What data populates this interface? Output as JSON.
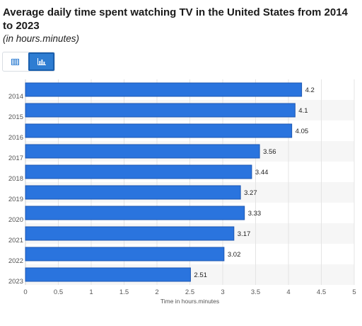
{
  "header": {
    "title": "Average daily time spent watching TV in the United States from 2014 to 2023",
    "subtitle": "(in hours.minutes)"
  },
  "view_toggle": {
    "table_icon": "table-icon",
    "chart_icon": "bar-chart-icon",
    "active": "chart",
    "active_color": "#2e7dd2"
  },
  "chart_data": {
    "type": "bar",
    "orientation": "horizontal",
    "title": "Average daily time spent watching TV in the United States from 2014 to 2023",
    "subtitle": "(in hours.minutes)",
    "categories": [
      "2014",
      "2015",
      "2016",
      "2017",
      "2018",
      "2019",
      "2020",
      "2021",
      "2022",
      "2023"
    ],
    "values": [
      4.2,
      4.1,
      4.05,
      3.56,
      3.44,
      3.27,
      3.33,
      3.17,
      3.02,
      2.51
    ],
    "value_labels": [
      "4.2",
      "4.1",
      "4.05",
      "3.56",
      "3.44",
      "3.27",
      "3.33",
      "3.17",
      "3.02",
      "2.51"
    ],
    "xlabel": "Time in hours.minutes",
    "ylabel": "",
    "xlim": [
      0,
      5
    ],
    "xticks": [
      "0",
      "0.5",
      "1",
      "1.5",
      "2",
      "2.5",
      "3",
      "3.5",
      "4",
      "4.5",
      "5"
    ],
    "grid": true,
    "bar_color": "#2a74de",
    "bar_edge_color": "#1d57b2",
    "band_color": "#f6f6f6"
  }
}
